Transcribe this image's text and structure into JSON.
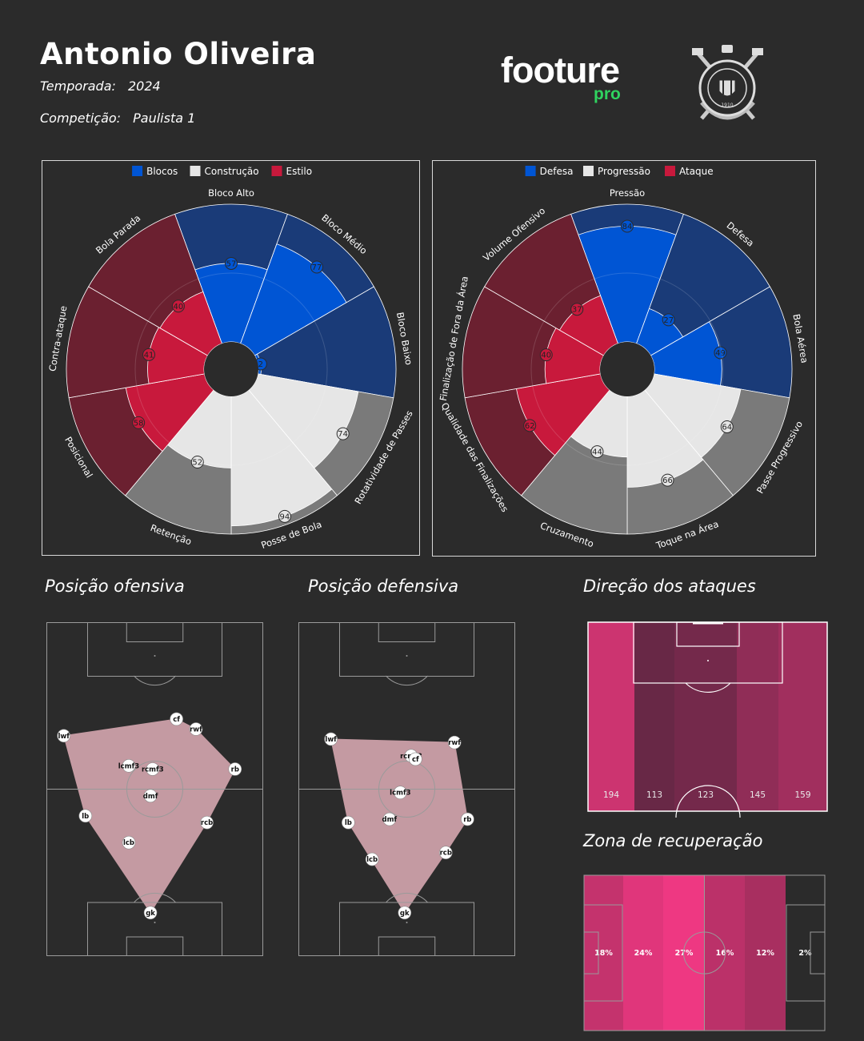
{
  "header": {
    "coach_name": "Antonio Oliveira",
    "season_label": "Temporada:",
    "season_value": "2024",
    "competition_label": "Competição:",
    "competition_value": "Paulista 1",
    "logo_text": "footure",
    "logo_sub": "pro",
    "crest_text": "S.C. CORINTHIANS PAULISTA · 1910"
  },
  "colors": {
    "background": "#2b2b2b",
    "blue_light": "#0055d4",
    "blue_dark": "#1a3b78",
    "red_light": "#c8193c",
    "red_dark": "#6b2030",
    "grey_light": "#e6e6e6",
    "grey_dark": "#7a7a7a",
    "shape_fill": "#c49aa2",
    "green": "#2fd35f"
  },
  "chart_data": [
    {
      "type": "radar-bar",
      "id": "chart-left",
      "legend": [
        {
          "label": "Blocos",
          "color": "#0055d4"
        },
        {
          "label": "Construção",
          "color": "#e6e6e6"
        },
        {
          "label": "Estilo",
          "color": "#c8193c"
        }
      ],
      "segments": [
        {
          "label": "Bloco Alto",
          "value": 57,
          "group": "blue"
        },
        {
          "label": "Bloco Médio",
          "value": 77,
          "group": "blue"
        },
        {
          "label": "Bloco Baixo",
          "value": 2,
          "group": "blue"
        },
        {
          "label": "Rotatividade de Passes",
          "value": 74,
          "group": "grey"
        },
        {
          "label": "Posse de Bola",
          "value": 94,
          "group": "grey"
        },
        {
          "label": "Retenção",
          "value": 52,
          "group": "grey"
        },
        {
          "label": "Posicional",
          "value": 58,
          "group": "red"
        },
        {
          "label": "Contra-ataque",
          "value": 41,
          "group": "red"
        },
        {
          "label": "Bola Parada",
          "value": 40,
          "group": "red"
        }
      ],
      "range": [
        0,
        100
      ]
    },
    {
      "type": "radar-bar",
      "id": "chart-right",
      "legend": [
        {
          "label": "Defesa",
          "color": "#0055d4"
        },
        {
          "label": "Progressão",
          "color": "#e6e6e6"
        },
        {
          "label": "Ataque",
          "color": "#c8193c"
        }
      ],
      "segments": [
        {
          "label": "Pressão",
          "value": 84,
          "group": "blue"
        },
        {
          "label": "Defesa",
          "value": 27,
          "group": "blue"
        },
        {
          "label": "Bola Aérea",
          "value": 49,
          "group": "blue"
        },
        {
          "label": "Passe Progressivo",
          "value": 64,
          "group": "grey"
        },
        {
          "label": "Toque na Área",
          "value": 66,
          "group": "grey"
        },
        {
          "label": "Cruzamento",
          "value": 44,
          "group": "grey"
        },
        {
          "label": "Qualidade das Finalizações",
          "value": 62,
          "group": "red"
        },
        {
          "label": "Finalização de Fora da Área",
          "value": 40,
          "group": "red"
        },
        {
          "label": "Volume Ofensivo",
          "value": 37,
          "group": "red"
        }
      ],
      "range": [
        0,
        100
      ]
    },
    {
      "type": "scatter",
      "id": "offensive-position",
      "title": "Posição ofensiva",
      "points": [
        {
          "label": "lwf",
          "x": 8,
          "y": 66
        },
        {
          "label": "cf",
          "x": 60,
          "y": 71
        },
        {
          "label": "rwf",
          "x": 69,
          "y": 68
        },
        {
          "label": "lcmf3",
          "x": 38,
          "y": 57
        },
        {
          "label": "rcmf3",
          "x": 49,
          "y": 56
        },
        {
          "label": "rb",
          "x": 87,
          "y": 56
        },
        {
          "label": "dmf",
          "x": 48,
          "y": 48
        },
        {
          "label": "lb",
          "x": 18,
          "y": 42
        },
        {
          "label": "rcb",
          "x": 74,
          "y": 40
        },
        {
          "label": "lcb",
          "x": 38,
          "y": 34
        },
        {
          "label": "gk",
          "x": 48,
          "y": 13
        }
      ]
    },
    {
      "type": "scatter",
      "id": "defensive-position",
      "title": "Posição defensiva",
      "points": [
        {
          "label": "lwf",
          "x": 15,
          "y": 65
        },
        {
          "label": "rwf",
          "x": 72,
          "y": 64
        },
        {
          "label": "rcmf3",
          "x": 52,
          "y": 60
        },
        {
          "label": "cf",
          "x": 54,
          "y": 59
        },
        {
          "label": "lcmf3",
          "x": 47,
          "y": 49
        },
        {
          "label": "rb",
          "x": 78,
          "y": 41
        },
        {
          "label": "dmf",
          "x": 42,
          "y": 41
        },
        {
          "label": "lb",
          "x": 23,
          "y": 40
        },
        {
          "label": "rcb",
          "x": 68,
          "y": 31
        },
        {
          "label": "lcb",
          "x": 34,
          "y": 29
        },
        {
          "label": "gk",
          "x": 49,
          "y": 13
        }
      ]
    },
    {
      "type": "heatmap",
      "id": "attack-direction",
      "title": "Direção dos ataques",
      "categories": [
        "left",
        "left-center",
        "center",
        "right-center",
        "right"
      ],
      "values": [
        194,
        113,
        123,
        145,
        159
      ]
    },
    {
      "type": "heatmap",
      "id": "recovery-zone",
      "title": "Zona de recuperação",
      "categories": [
        "zone1",
        "zone2",
        "zone3",
        "zone4",
        "zone5",
        "zone6"
      ],
      "values": [
        "18%",
        "24%",
        "27%",
        "16%",
        "12%",
        "2%"
      ]
    }
  ]
}
